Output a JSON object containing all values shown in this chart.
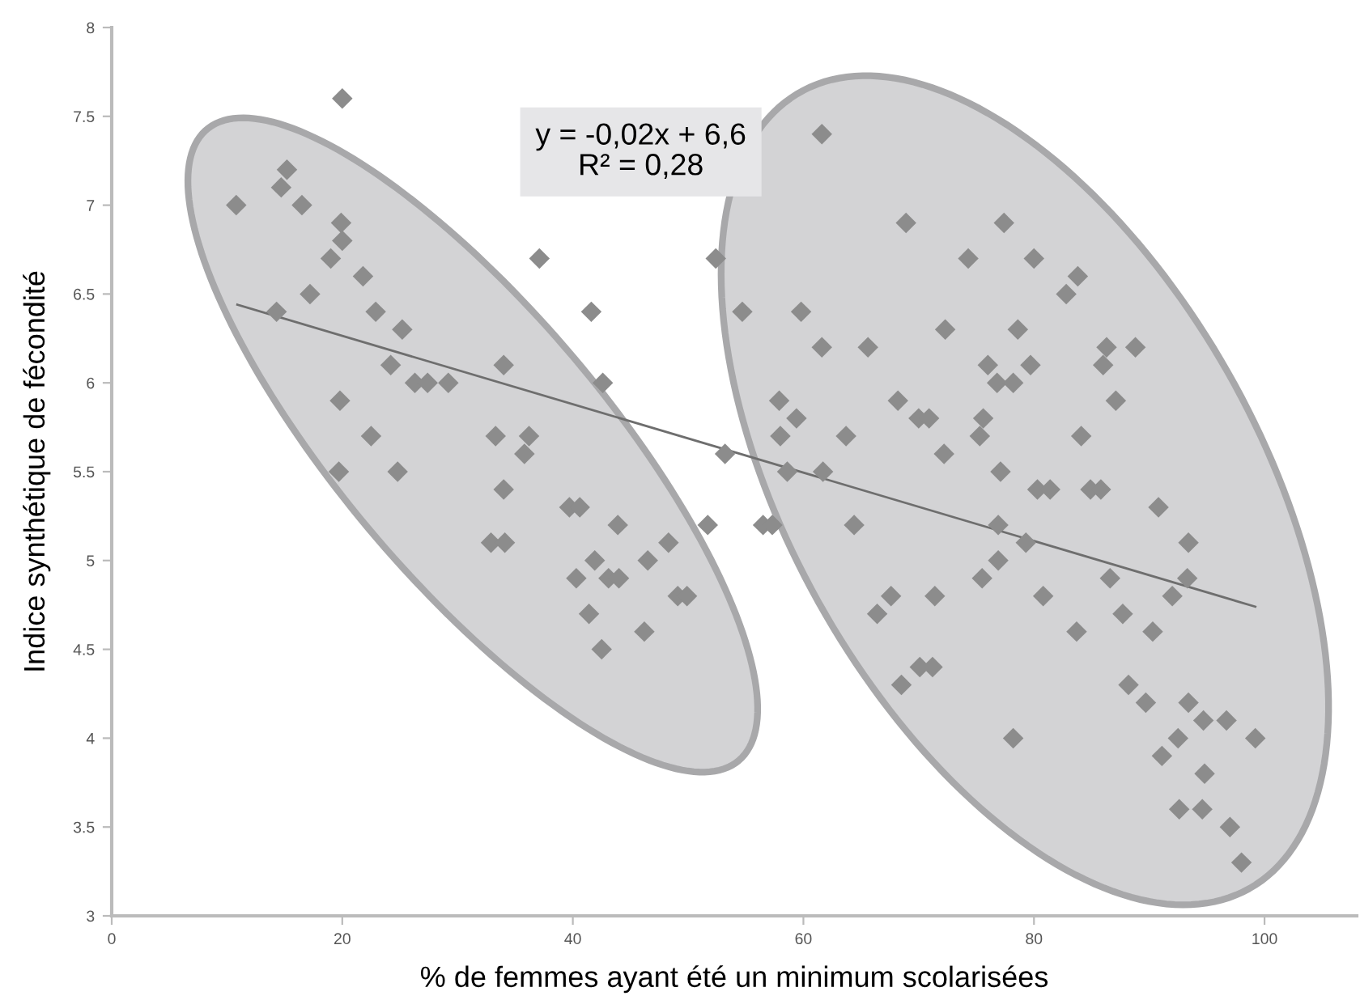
{
  "chart_data": {
    "type": "scatter",
    "xlabel": "% de femmes ayant été un minimum scolarisées",
    "ylabel": "Indice synthétique de fécondité",
    "xlim": [
      0,
      108
    ],
    "xticks": [
      0,
      20,
      40,
      60,
      80,
      100
    ],
    "ylim": [
      3,
      8
    ],
    "yticks": [
      3,
      3.5,
      4,
      4.5,
      5,
      5.5,
      6,
      6.5,
      7,
      7.5,
      8
    ],
    "grid": false,
    "legend": false,
    "marker": "diamond",
    "annotations": [
      "y = -0,02x + 6,6\nR² = 0,28"
    ],
    "series": [
      {
        "color": "#8c8c8c",
        "x": [
          20.0,
          10.8,
          15.2,
          14.7,
          16.5,
          19.9,
          20.0,
          19.0,
          21.8,
          17.2,
          14.3,
          22.9,
          25.2,
          24.2,
          34.0,
          26.3,
          27.4,
          29.2,
          19.8,
          37.1,
          41.6,
          42.6,
          52.4,
          54.7,
          22.5,
          33.3,
          36.2,
          35.8,
          53.2,
          19.7,
          24.8,
          34.0,
          39.7,
          40.6,
          43.9,
          32.9,
          34.1,
          48.3,
          41.9,
          46.5,
          51.7,
          40.3,
          43.1,
          44.0,
          49.1,
          49.9,
          41.4,
          46.2,
          42.5,
          61.6,
          68.9,
          77.4,
          74.3,
          80.0,
          83.8,
          82.8,
          59.8,
          61.6,
          65.6,
          72.3,
          78.6,
          86.3,
          88.8,
          76.0,
          79.7,
          86.0,
          76.8,
          78.2,
          57.9,
          68.2,
          87.1,
          59.4,
          70.0,
          70.9,
          75.6,
          58.0,
          63.7,
          75.3,
          84.1,
          72.2,
          58.6,
          61.7,
          77.1,
          80.3,
          81.4,
          84.9,
          85.8,
          90.8,
          56.5,
          57.3,
          64.4,
          76.9,
          93.4,
          79.3,
          76.9,
          75.5,
          86.6,
          93.3,
          67.6,
          71.4,
          80.8,
          92.0,
          66.4,
          87.7,
          83.7,
          90.3,
          70.1,
          71.2,
          68.5,
          88.2,
          89.7,
          93.4,
          94.7,
          96.7,
          92.5,
          99.2,
          78.2,
          91.1,
          94.8,
          92.6,
          94.6,
          97.0,
          98.0
        ],
        "values": [
          7.6,
          7.0,
          7.2,
          7.1,
          7.0,
          6.9,
          6.8,
          6.7,
          6.6,
          6.5,
          6.4,
          6.4,
          6.3,
          6.1,
          6.1,
          6.0,
          6.0,
          6.0,
          5.9,
          6.7,
          6.4,
          6.0,
          6.7,
          6.4,
          5.7,
          5.7,
          5.7,
          5.6,
          5.6,
          5.5,
          5.5,
          5.4,
          5.3,
          5.3,
          5.2,
          5.1,
          5.1,
          5.1,
          5.0,
          5.0,
          5.2,
          4.9,
          4.9,
          4.9,
          4.8,
          4.8,
          4.7,
          4.6,
          4.5,
          7.4,
          6.9,
          6.9,
          6.7,
          6.7,
          6.6,
          6.5,
          6.4,
          6.2,
          6.2,
          6.3,
          6.3,
          6.2,
          6.2,
          6.1,
          6.1,
          6.1,
          6.0,
          6.0,
          5.9,
          5.9,
          5.9,
          5.8,
          5.8,
          5.8,
          5.8,
          5.7,
          5.7,
          5.7,
          5.7,
          5.6,
          5.5,
          5.5,
          5.5,
          5.4,
          5.4,
          5.4,
          5.4,
          5.3,
          5.2,
          5.2,
          5.2,
          5.2,
          5.1,
          5.1,
          5.0,
          4.9,
          4.9,
          4.9,
          4.8,
          4.8,
          4.8,
          4.8,
          4.7,
          4.7,
          4.6,
          4.6,
          4.4,
          4.4,
          4.3,
          4.3,
          4.2,
          4.2,
          4.1,
          4.1,
          4.0,
          4.0,
          4.0,
          3.9,
          3.8,
          3.6,
          3.6,
          3.5,
          3.3
        ]
      },
      {
        "type": "line",
        "color": "#6e6e6e",
        "marker": "none",
        "x": [
          10.9,
          99.2
        ],
        "values": [
          6.44,
          4.74
        ]
      }
    ]
  }
}
